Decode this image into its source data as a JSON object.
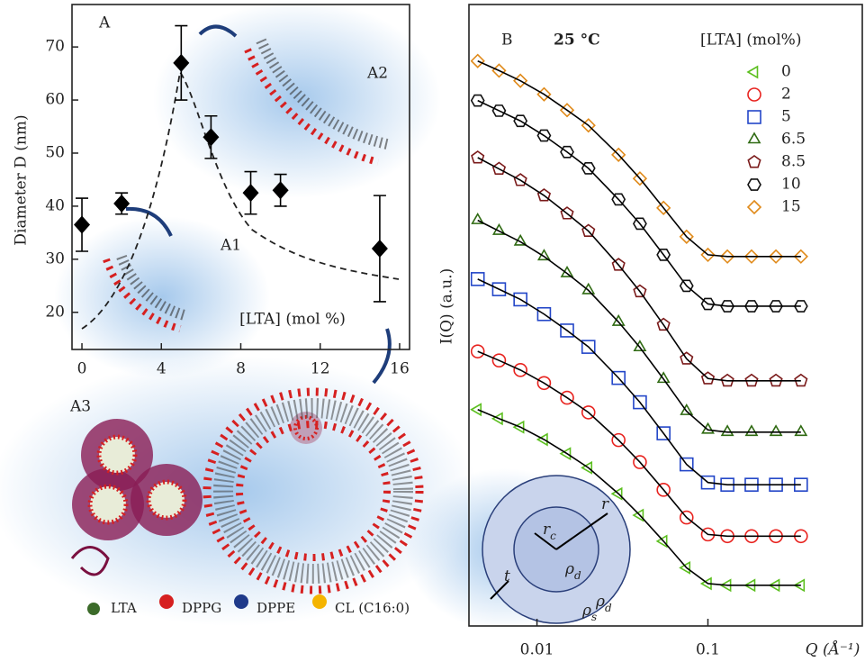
{
  "chart_data": [
    {
      "type": "scatter",
      "panel_label": "A",
      "ylabel": "Diameter D (nm)",
      "annotations": [
        "A1",
        "A2",
        "A3",
        "[LTA] (mol %)"
      ],
      "x": [
        0,
        2,
        5,
        6.5,
        8.5,
        10,
        15
      ],
      "values": [
        36.5,
        40.5,
        67,
        53,
        42.5,
        43,
        32
      ],
      "errors": [
        5,
        2,
        7,
        4,
        4,
        3,
        10
      ],
      "color": "#000000",
      "xlim": [
        -0.5,
        16.5
      ],
      "xticks": [
        0,
        4,
        8,
        12,
        16
      ],
      "ylim": [
        13,
        78
      ],
      "yticks": [
        20,
        30,
        40,
        50,
        60,
        70
      ],
      "components": [
        "LTA",
        "DPPG",
        "DPPE",
        "CL (C16:0)"
      ]
    },
    {
      "type": "line",
      "panel_label": "B",
      "condition": "25 °C",
      "legend_title": "[LTA] (mol%)",
      "xlabel": "Q (Å⁻¹)",
      "ylabel": "I(Q) (a.u.)",
      "xscale": "log",
      "xlim": [
        0.004,
        0.8
      ],
      "xticks": [
        0.01,
        0.1
      ],
      "ylim": [
        0,
        11
      ],
      "fit_color": "#000000",
      "x": [
        0.0045,
        0.006,
        0.008,
        0.011,
        0.015,
        0.02,
        0.03,
        0.04,
        0.055,
        0.075,
        0.1,
        0.13,
        0.18,
        0.25,
        0.35
      ],
      "series": [
        {
          "name": "0",
          "color": "#5cbf1f",
          "marker": "triangle-left",
          "values": [
            3.83,
            3.67,
            3.52,
            3.3,
            3.05,
            2.8,
            2.34,
            1.96,
            1.5,
            1.03,
            0.75,
            0.72,
            0.72,
            0.72,
            0.72
          ]
        },
        {
          "name": "2",
          "color": "#e8231f",
          "marker": "circle",
          "values": [
            4.86,
            4.7,
            4.53,
            4.3,
            4.04,
            3.78,
            3.29,
            2.9,
            2.41,
            1.92,
            1.62,
            1.59,
            1.59,
            1.59,
            1.59
          ]
        },
        {
          "name": "5",
          "color": "#2346c8",
          "marker": "square",
          "values": [
            6.14,
            5.96,
            5.78,
            5.52,
            5.23,
            4.94,
            4.39,
            3.96,
            3.41,
            2.86,
            2.54,
            2.5,
            2.5,
            2.5,
            2.5
          ]
        },
        {
          "name": "6.5",
          "color": "#2f6a12",
          "marker": "triangle-up",
          "values": [
            7.18,
            6.99,
            6.8,
            6.54,
            6.24,
            5.94,
            5.38,
            4.93,
            4.37,
            3.8,
            3.47,
            3.43,
            3.43,
            3.43,
            3.43
          ]
        },
        {
          "name": "8.5",
          "color": "#7a1a1a",
          "marker": "pentagon",
          "values": [
            8.29,
            8.09,
            7.89,
            7.62,
            7.3,
            6.99,
            6.39,
            5.92,
            5.33,
            4.73,
            4.38,
            4.34,
            4.34,
            4.34,
            4.34
          ]
        },
        {
          "name": "10",
          "color": "#111111",
          "marker": "hexagon",
          "values": [
            9.3,
            9.12,
            8.94,
            8.68,
            8.39,
            8.1,
            7.55,
            7.12,
            6.57,
            6.02,
            5.7,
            5.66,
            5.66,
            5.66,
            5.66
          ]
        },
        {
          "name": "15",
          "color": "#e08a1a",
          "marker": "diamond",
          "values": [
            10.0,
            9.83,
            9.65,
            9.41,
            9.13,
            8.86,
            8.34,
            7.92,
            7.4,
            6.89,
            6.57,
            6.54,
            6.54,
            6.54,
            6.54
          ]
        }
      ],
      "inset_labels": [
        {
          "symbol": "r",
          "sub": "c"
        },
        {
          "symbol": "r",
          "sub": ""
        },
        {
          "symbol": "t",
          "sub": ""
        },
        {
          "symbol": "ρ",
          "sub": "d"
        },
        {
          "symbol": "ρ",
          "sub": "s"
        },
        {
          "symbol": "ρ",
          "sub": "d"
        }
      ]
    }
  ]
}
